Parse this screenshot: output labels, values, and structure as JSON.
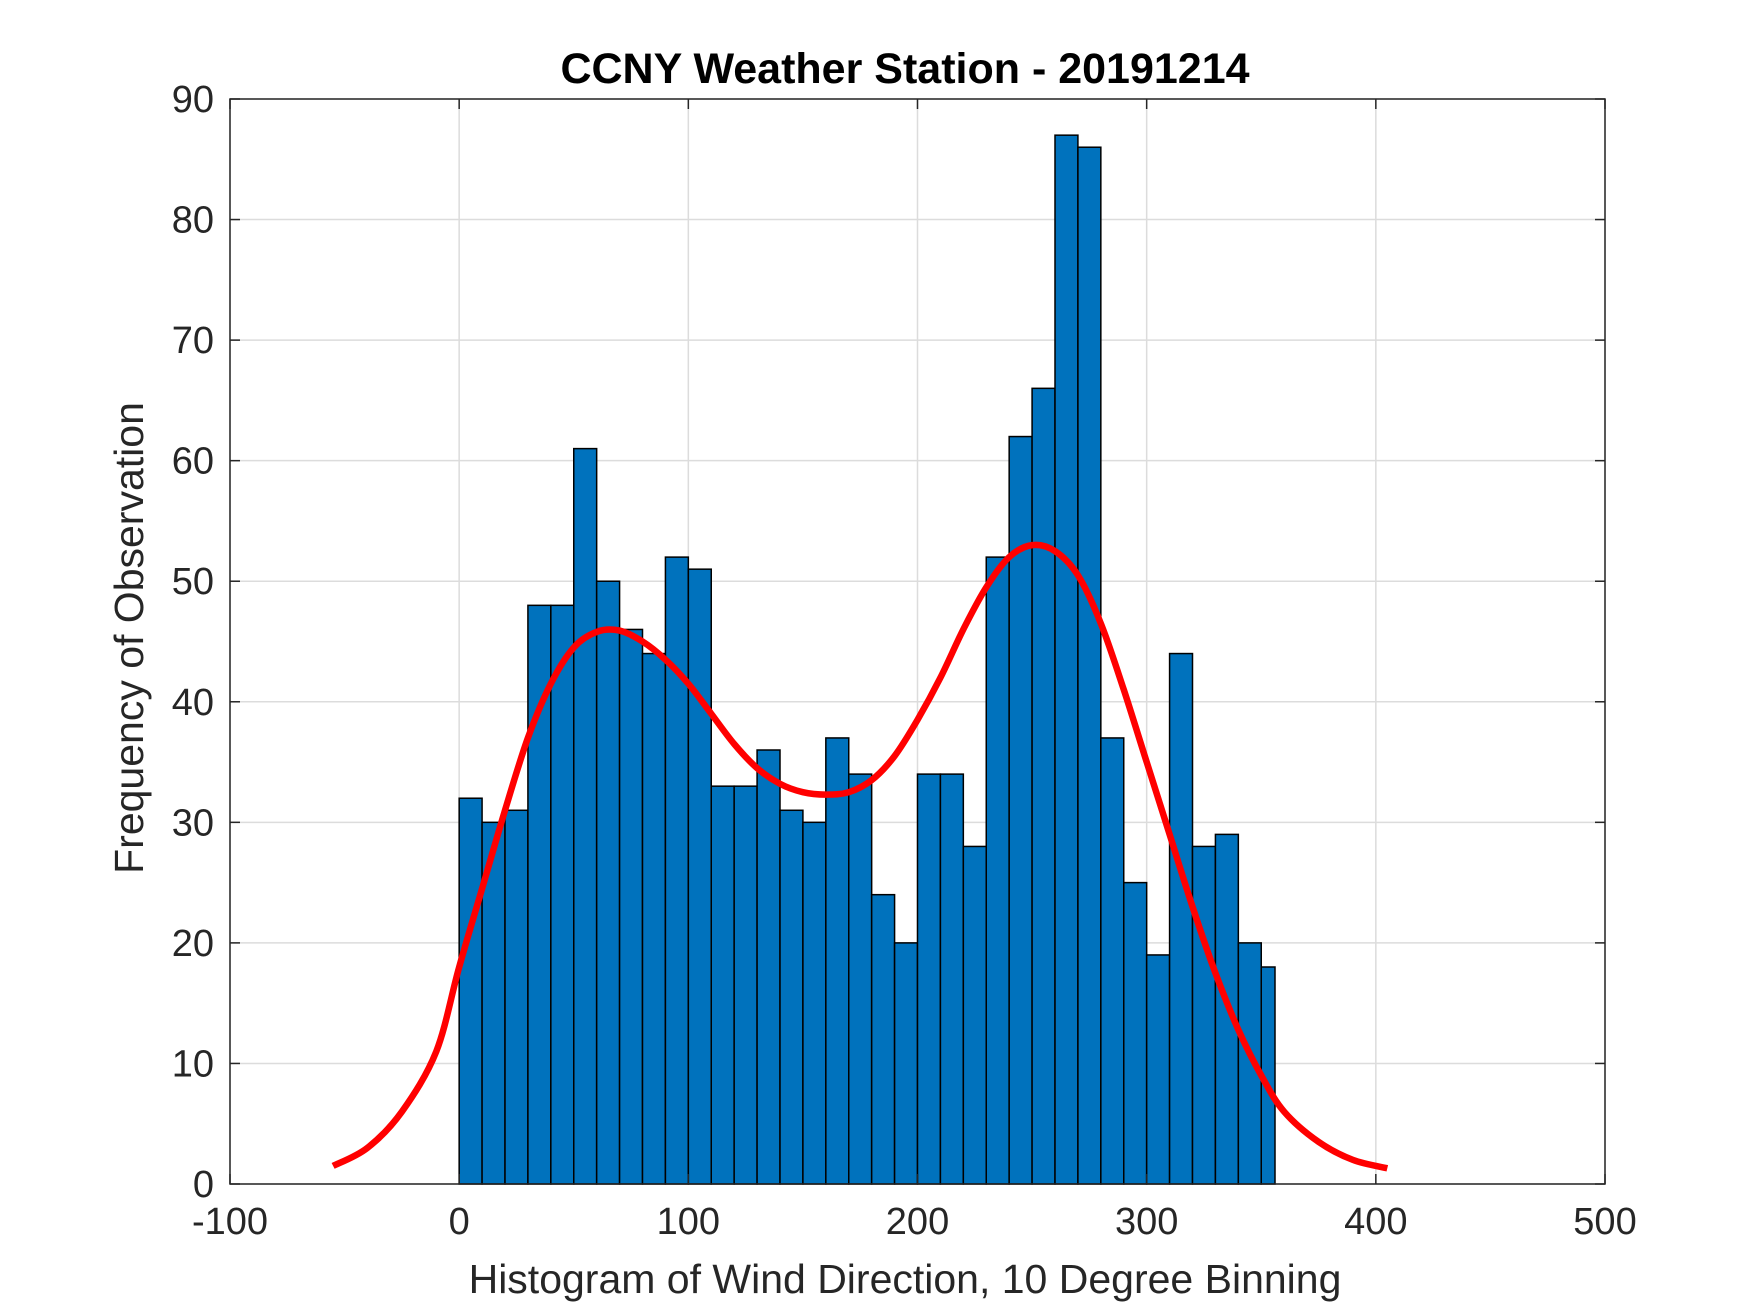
{
  "chart_data": {
    "type": "bar",
    "subtype": "histogram",
    "title": "CCNY Weather Station - 20191214",
    "xlabel": "Histogram of Wind Direction, 10 Degree Binning",
    "ylabel": "Frequency of Observation",
    "xlim": [
      -100,
      500
    ],
    "ylim": [
      0,
      90
    ],
    "xticks": [
      -100,
      0,
      100,
      200,
      300,
      400,
      500
    ],
    "yticks": [
      0,
      10,
      20,
      30,
      40,
      50,
      60,
      70,
      80,
      90
    ],
    "grid": true,
    "bin_width": 10,
    "bin_edges": [
      0,
      10,
      20,
      30,
      40,
      50,
      60,
      70,
      80,
      90,
      100,
      110,
      120,
      130,
      140,
      150,
      160,
      170,
      180,
      190,
      200,
      210,
      220,
      230,
      240,
      250,
      260,
      270,
      280,
      290,
      300,
      310,
      320,
      330,
      340,
      350,
      356
    ],
    "values": [
      32,
      30,
      31,
      48,
      48,
      61,
      50,
      46,
      44,
      52,
      51,
      33,
      33,
      36,
      31,
      30,
      37,
      34,
      24,
      20,
      34,
      34,
      28,
      52,
      62,
      66,
      87,
      86,
      37,
      25,
      19,
      44,
      28,
      29,
      20,
      18
    ],
    "bar_color": "#0072BD",
    "fit_curve": {
      "name": "bimodal fit",
      "color": "#FF0000",
      "x": [
        -55,
        -40,
        -25,
        -10,
        0,
        10,
        20,
        30,
        40,
        50,
        60,
        70,
        80,
        90,
        100,
        110,
        120,
        130,
        140,
        150,
        160,
        170,
        180,
        190,
        200,
        210,
        220,
        230,
        240,
        250,
        260,
        270,
        280,
        290,
        300,
        310,
        320,
        330,
        340,
        350,
        360,
        375,
        390,
        405
      ],
      "y": [
        1.5,
        3.0,
        6.0,
        11.0,
        18.0,
        24.5,
        31.0,
        37.0,
        41.5,
        44.5,
        45.8,
        45.9,
        45.0,
        43.5,
        41.5,
        39.0,
        36.5,
        34.5,
        33.2,
        32.5,
        32.3,
        32.5,
        33.5,
        35.5,
        38.5,
        42.0,
        46.0,
        49.5,
        52.0,
        53.0,
        52.5,
        50.5,
        46.5,
        41.0,
        35.0,
        29.0,
        23.0,
        17.5,
        12.8,
        9.0,
        6.0,
        3.5,
        2.0,
        1.3
      ]
    }
  }
}
